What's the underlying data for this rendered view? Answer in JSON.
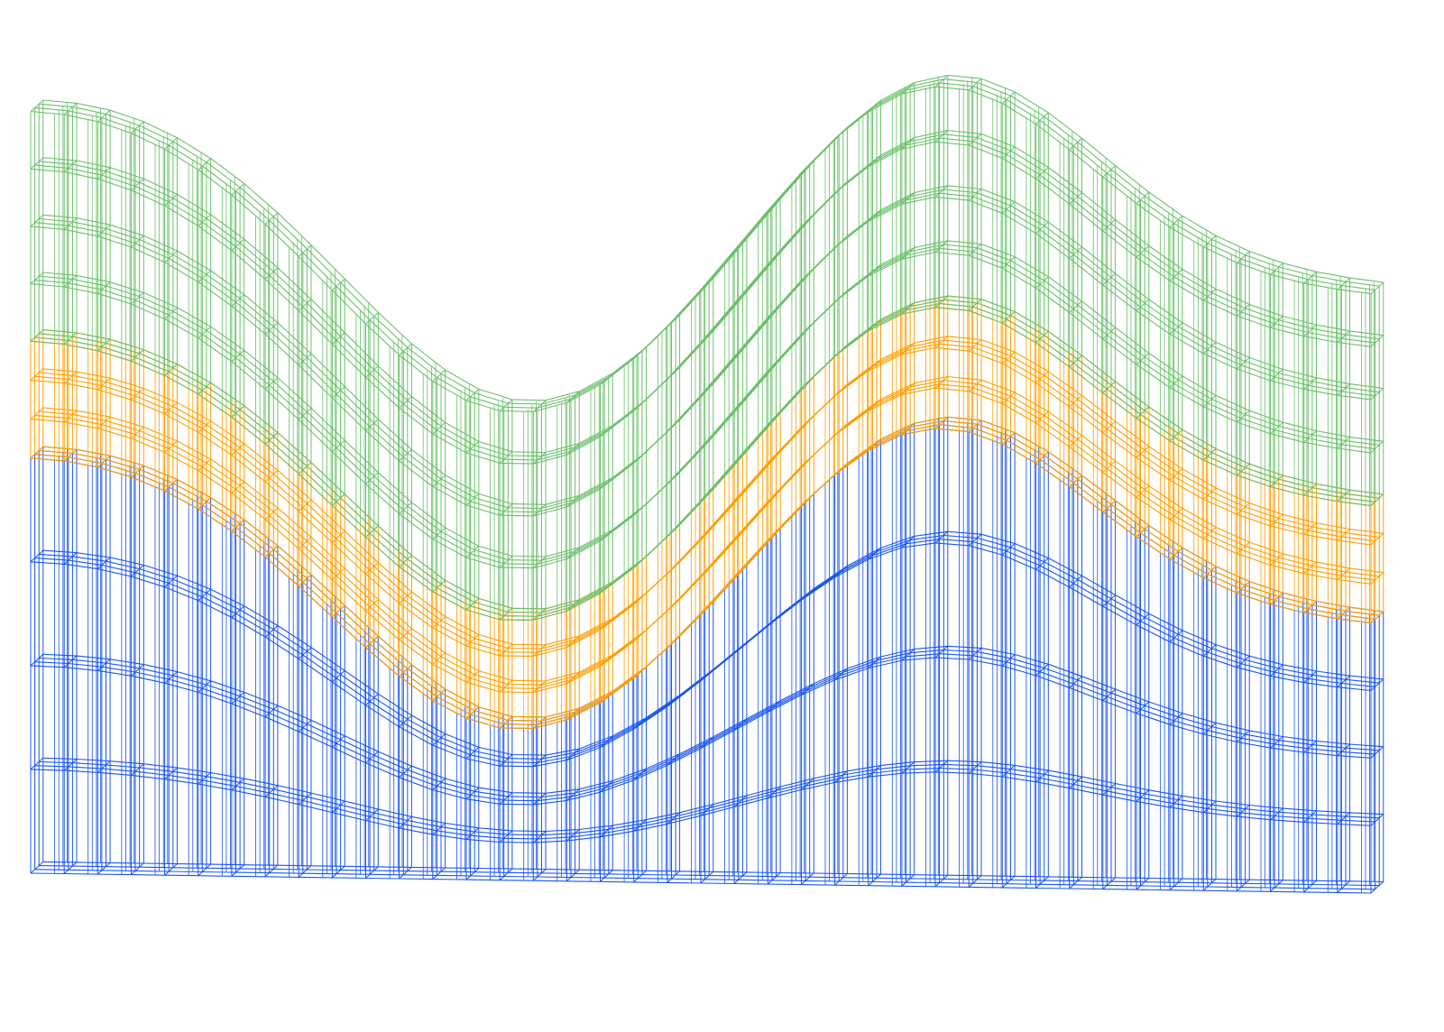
{
  "diagram": {
    "kind": "3d-wireframe-layered-mesh",
    "background": "#ffffff",
    "layers": [
      {
        "id": "bottom",
        "color": "#1a55f0",
        "vertical_cells": 4
      },
      {
        "id": "middle",
        "color": "#ff9e00",
        "vertical_cells": 3
      },
      {
        "id": "top",
        "color": "#6cc06c",
        "vertical_cells": 4
      }
    ],
    "columns": 40,
    "depth_slices": 4
  }
}
